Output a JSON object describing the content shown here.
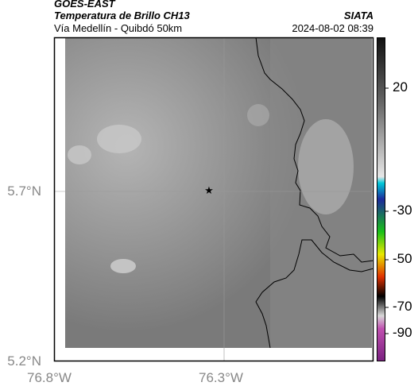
{
  "header": {
    "title": "GOES-EAST",
    "subtitle": "Temperatura de Brillo CH13",
    "region": "Vía Medellín - Quibdó 50km",
    "source": "SIATA",
    "timestamp": "2024-08-02 08:39"
  },
  "axes": {
    "lat": [
      "5.7°N",
      "5.2°N"
    ],
    "lon": [
      "76.8°W",
      "76.3°W"
    ]
  },
  "colorbar": {
    "labels": [
      "20",
      "-30",
      "-50",
      "-70",
      "-90"
    ]
  }
}
